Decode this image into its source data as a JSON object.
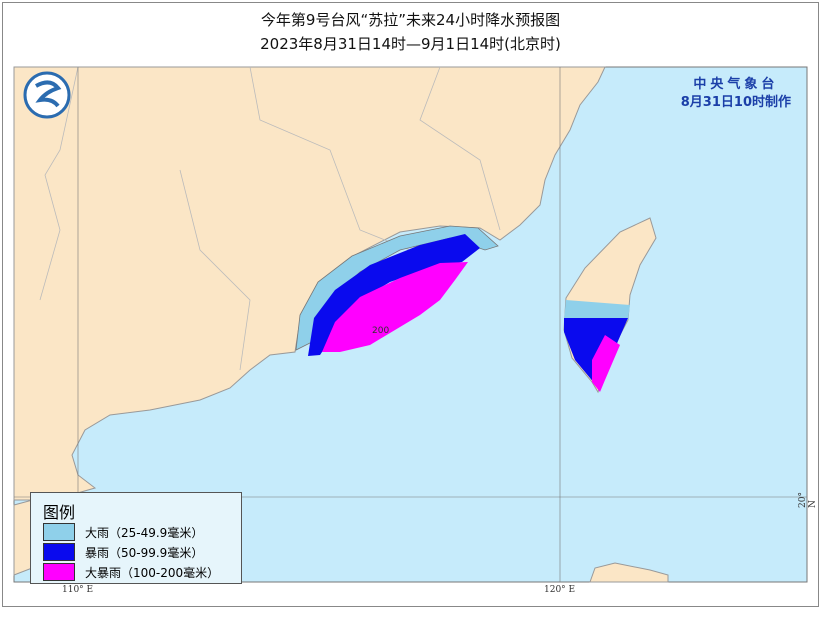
{
  "title": "今年第9号台风“苏拉”未来24小时降水预报图",
  "subtitle": "2023年8月31日14时—9月1日14时(北京时)",
  "agency": {
    "name": "中央气象台",
    "issued": "8月31日10时制作"
  },
  "map_label": "200",
  "legend": {
    "title": "图例",
    "items": [
      {
        "label": "大雨（25-49.9毫米）",
        "color": "#8fd0ea"
      },
      {
        "label": "暴雨（50-99.9毫米）",
        "color": "#0a0aee"
      },
      {
        "label": "大暴雨（100-200毫米）",
        "color": "#ff00ff"
      }
    ]
  },
  "axes": {
    "lon_110": "110° E",
    "lon_120": "120° E",
    "lat_20": "20° N"
  },
  "colors": {
    "sea": "#c6ebfb",
    "land": "#fbe6c6",
    "border": "#999999"
  },
  "logo": "logo-icon"
}
